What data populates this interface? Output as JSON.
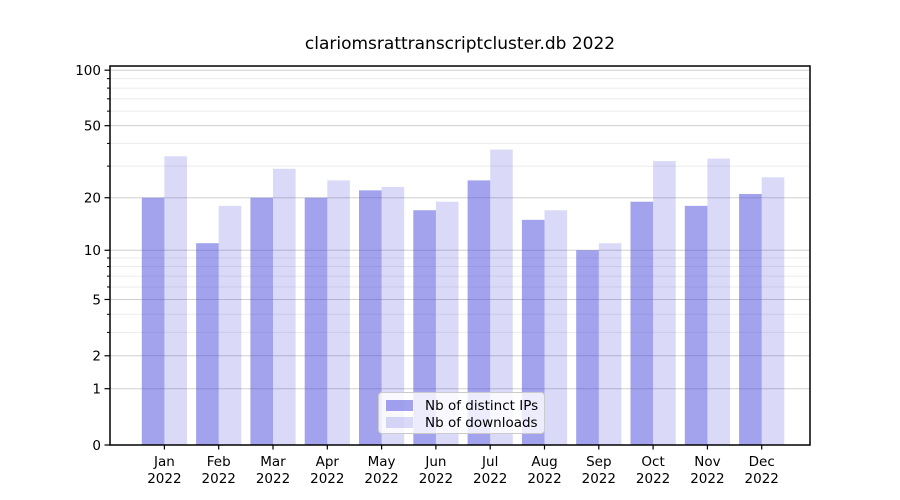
{
  "chart_data": {
    "type": "bar",
    "title": "clariomsrattranscriptcluster.db 2022",
    "categories": [
      "Jan 2022",
      "Feb 2022",
      "Mar 2022",
      "Apr 2022",
      "May 2022",
      "Jun 2022",
      "Jul 2022",
      "Aug 2022",
      "Sep 2022",
      "Oct 2022",
      "Nov 2022",
      "Dec 2022"
    ],
    "series": [
      {
        "name": "Nb of distinct IPs",
        "values": [
          20,
          11,
          20,
          20,
          22,
          17,
          25,
          15,
          10,
          19,
          18,
          21
        ],
        "color": "rgba(70,70,220,0.5)"
      },
      {
        "name": "Nb of downloads",
        "values": [
          34,
          18,
          29,
          25,
          23,
          19,
          37,
          17,
          11,
          32,
          33,
          26
        ],
        "color": "rgba(70,70,220,0.2)"
      }
    ],
    "yscale": "log1p",
    "y_major_ticks": [
      0,
      1,
      2,
      5,
      10,
      20,
      50,
      100
    ],
    "y_minor_ticks": [
      3,
      4,
      6,
      7,
      8,
      9,
      30,
      40,
      60,
      70,
      80,
      90
    ],
    "ylim": [
      0,
      105
    ],
    "xlabel": "",
    "ylabel": "",
    "grid": true,
    "legend_position": "lower-center",
    "colors": {
      "bar_base": "#4646dc",
      "major_grid": "#cfcfcf",
      "minor_grid": "#ebebeb",
      "frame": "#000000",
      "legend_border": "#cbcbcb"
    }
  }
}
